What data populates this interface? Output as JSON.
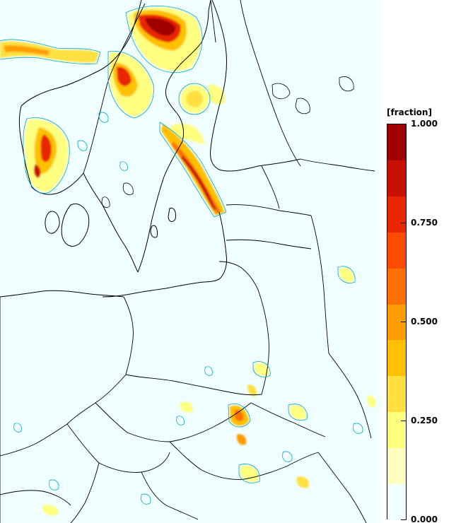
{
  "legend": {
    "title": "[fraction]",
    "ticks": [
      "1.000",
      "0.750",
      "0.500",
      "0.250",
      "0.000"
    ],
    "tick_values": [
      1.0,
      0.75,
      0.5,
      0.25,
      0.0
    ],
    "min": 0.0,
    "max": 1.0,
    "colors": [
      "#f0ffff",
      "#ffffc0",
      "#ffff80",
      "#ffe040",
      "#ffc000",
      "#ff9c00",
      "#ff7000",
      "#ff4c00",
      "#e82800",
      "#c81000",
      "#a00000"
    ]
  },
  "map": {
    "background_color": "#f0ffff",
    "border_color": "#000000",
    "contour_color": "#00a8c8",
    "field_name": "fraction"
  }
}
